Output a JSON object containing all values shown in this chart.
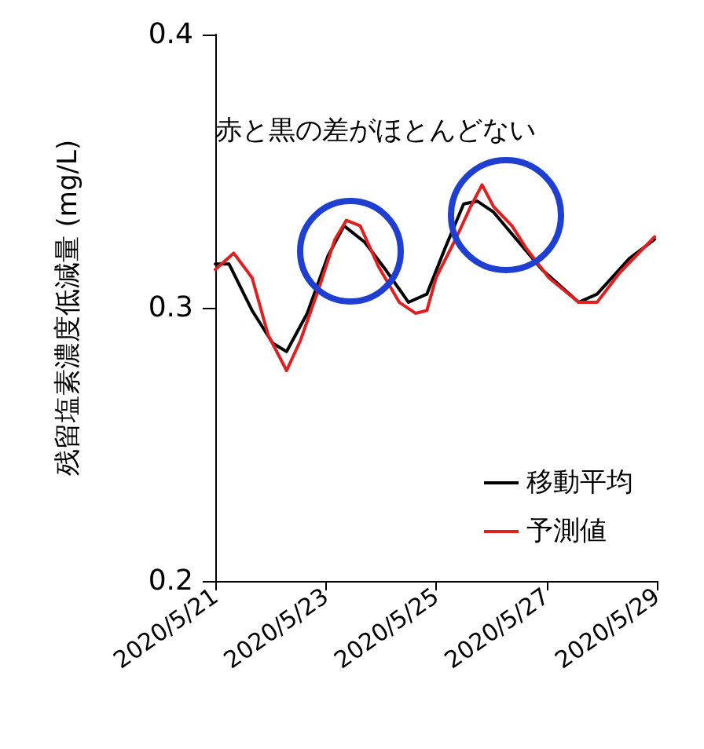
{
  "chart_data": {
    "type": "line",
    "ylabel": "残留塩素濃度低減量 (mg/L)",
    "annotations": [
      "赤と黒の差がほとんどない"
    ],
    "xlim": [
      "2020-05-21",
      "2020-05-29"
    ],
    "xticks": [
      {
        "value": "2020-05-21",
        "label": "2020/5/21"
      },
      {
        "value": "2020-05-23",
        "label": "2020/5/23"
      },
      {
        "value": "2020-05-25",
        "label": "2020/5/25"
      },
      {
        "value": "2020-05-27",
        "label": "2020/5/27"
      },
      {
        "value": "2020-05-29",
        "label": "2020/5/29"
      }
    ],
    "ylim": [
      0.2,
      0.4
    ],
    "yticks": [
      {
        "value": 0.2,
        "label": "0.2"
      },
      {
        "value": 0.3,
        "label": "0.3"
      },
      {
        "value": 0.4,
        "label": "0.4"
      }
    ],
    "grid": false,
    "legend": "bottom right",
    "marker": "none",
    "line_style": "solid",
    "series": [
      {
        "name": "移動平均",
        "color": "#000000",
        "x": [
          "2020-05-21T00:00",
          "2020-05-21T06:00",
          "2020-05-21T16:00",
          "2020-05-22T01:00",
          "2020-05-22T07:00",
          "2020-05-22T16:00",
          "2020-05-23T01:00",
          "2020-05-23T08:00",
          "2020-05-23T17:00",
          "2020-05-24T02:00",
          "2020-05-24T12:00",
          "2020-05-24T20:00",
          "2020-05-25T04:00",
          "2020-05-25T12:00",
          "2020-05-25T18:00",
          "2020-05-26T01:00",
          "2020-05-26T11:00",
          "2020-05-26T22:00",
          "2020-05-27T14:00",
          "2020-05-27T22:00",
          "2020-05-28T12:00",
          "2020-05-28T23:00"
        ],
        "values": [
          0.316,
          0.316,
          0.299,
          0.287,
          0.284,
          0.298,
          0.319,
          0.33,
          0.324,
          0.314,
          0.302,
          0.305,
          0.322,
          0.338,
          0.339,
          0.335,
          0.325,
          0.314,
          0.302,
          0.305,
          0.318,
          0.325
        ]
      },
      {
        "name": "予測値",
        "color": "#e02020",
        "x": [
          "2020-05-21T00:00",
          "2020-05-21T08:00",
          "2020-05-21T16:00",
          "2020-05-21T23:00",
          "2020-05-22T07:00",
          "2020-05-22T13:00",
          "2020-05-22T21:00",
          "2020-05-23T04:00",
          "2020-05-23T09:00",
          "2020-05-23T15:00",
          "2020-05-23T23:00",
          "2020-05-24T08:00",
          "2020-05-24T15:00",
          "2020-05-24T20:00",
          "2020-05-25T00:00",
          "2020-05-25T09:00",
          "2020-05-25T15:00",
          "2020-05-25T20:00",
          "2020-05-26T01:00",
          "2020-05-26T09:00",
          "2020-05-26T15:00",
          "2020-05-27T01:00",
          "2020-05-27T14:00",
          "2020-05-27T22:00",
          "2020-05-28T08:00",
          "2020-05-28T23:00"
        ],
        "values": [
          0.314,
          0.32,
          0.311,
          0.29,
          0.277,
          0.288,
          0.307,
          0.325,
          0.332,
          0.33,
          0.315,
          0.302,
          0.298,
          0.299,
          0.311,
          0.326,
          0.337,
          0.345,
          0.337,
          0.33,
          0.322,
          0.311,
          0.302,
          0.302,
          0.313,
          0.326
        ]
      }
    ]
  }
}
